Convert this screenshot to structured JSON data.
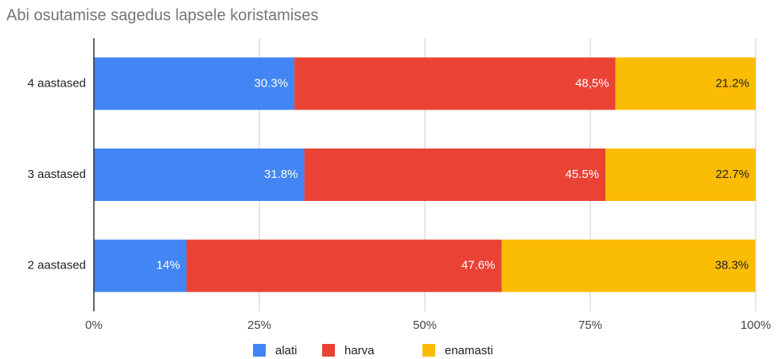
{
  "chart_data": {
    "type": "stacked_bar_horizontal",
    "title": "Abi osutamise sagedus lapsele koristamises",
    "categories": [
      "4 aastased",
      "3 aastased",
      "2 aastased"
    ],
    "series": [
      {
        "name": "alati",
        "color": "#4285f4",
        "values": [
          30.3,
          31.8,
          14
        ],
        "value_labels": [
          "30.3%",
          "31.8%",
          "14%"
        ]
      },
      {
        "name": "harva",
        "color": "#ea4335",
        "values": [
          48.5,
          45.5,
          47.6
        ],
        "value_labels": [
          "48,5%",
          "45.5%",
          "47.6%"
        ]
      },
      {
        "name": "enamasti",
        "color": "#fbbc04",
        "values": [
          21.2,
          22.7,
          38.3
        ],
        "value_labels": [
          "21.2%",
          "22.7%",
          "38.3%"
        ]
      }
    ],
    "xlim": [
      0,
      100
    ],
    "xticks": [
      {
        "value": 0,
        "label": "0%"
      },
      {
        "value": 25,
        "label": "25%"
      },
      {
        "value": 50,
        "label": "50%"
      },
      {
        "value": 75,
        "label": "75%"
      },
      {
        "value": 100,
        "label": "100%"
      }
    ],
    "grid": true,
    "legend": "bottom"
  }
}
